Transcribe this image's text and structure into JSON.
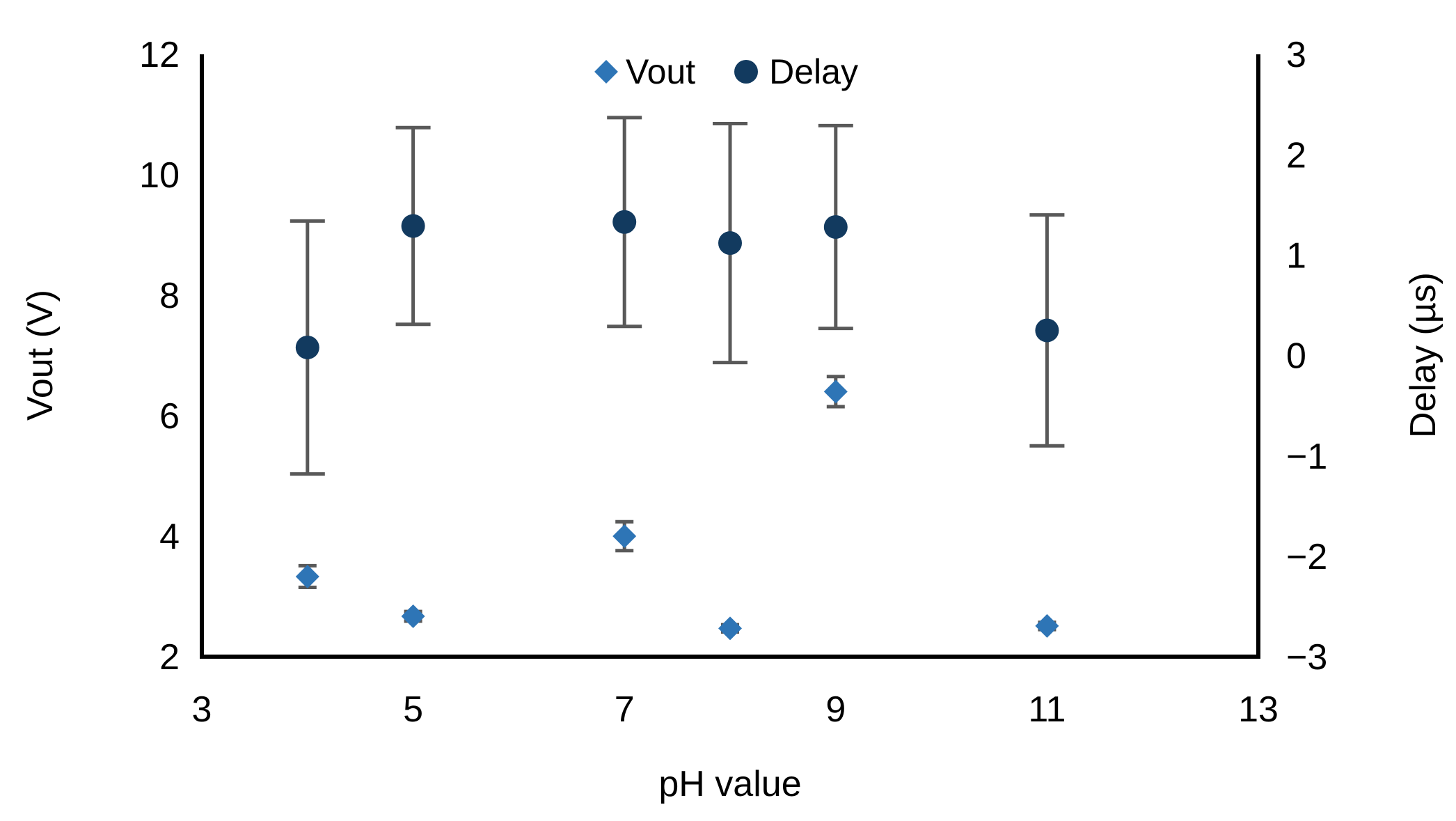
{
  "chart_data": {
    "type": "scatter",
    "title": "",
    "xlabel": "pH value",
    "ylabel_left": "Vout (V)",
    "ylabel_right": "Delay (µs)",
    "xlim": [
      3,
      13
    ],
    "x_ticks": [
      3,
      5,
      7,
      9,
      11,
      13
    ],
    "ylim_left": [
      2,
      12
    ],
    "left_ticks": [
      2,
      4,
      6,
      8,
      10,
      12
    ],
    "ylim_right": [
      -3,
      3
    ],
    "right_ticks": [
      -3,
      -2,
      -1,
      0,
      1,
      2,
      3
    ],
    "grid": false,
    "legend_position": "top-center",
    "colors": {
      "axis": "#000000",
      "text": "#000000",
      "error_bar": "#595959",
      "background": "#FFFFFF"
    },
    "series": [
      {
        "name": "Vout",
        "axis": "left",
        "marker": "diamond",
        "color": "#2E75B6",
        "points": [
          {
            "x": 4,
            "y": 3.33,
            "err": 0.18
          },
          {
            "x": 5,
            "y": 2.67,
            "err": 0.08
          },
          {
            "x": 7,
            "y": 4.0,
            "err": 0.24
          },
          {
            "x": 8,
            "y": 2.47,
            "err": 0.06
          },
          {
            "x": 9,
            "y": 6.4,
            "err": 0.25
          },
          {
            "x": 11,
            "y": 2.51,
            "err": 0.06
          }
        ]
      },
      {
        "name": "Delay",
        "axis": "right",
        "marker": "circle",
        "color": "#123A5F",
        "points": [
          {
            "x": 4,
            "y": 0.08,
            "err": 1.26
          },
          {
            "x": 5,
            "y": 1.29,
            "err": 0.98
          },
          {
            "x": 7,
            "y": 1.33,
            "err": 1.04
          },
          {
            "x": 8,
            "y": 1.12,
            "err": 1.19
          },
          {
            "x": 9,
            "y": 1.28,
            "err": 1.01
          },
          {
            "x": 11,
            "y": 0.25,
            "err": 1.15
          }
        ]
      }
    ]
  }
}
